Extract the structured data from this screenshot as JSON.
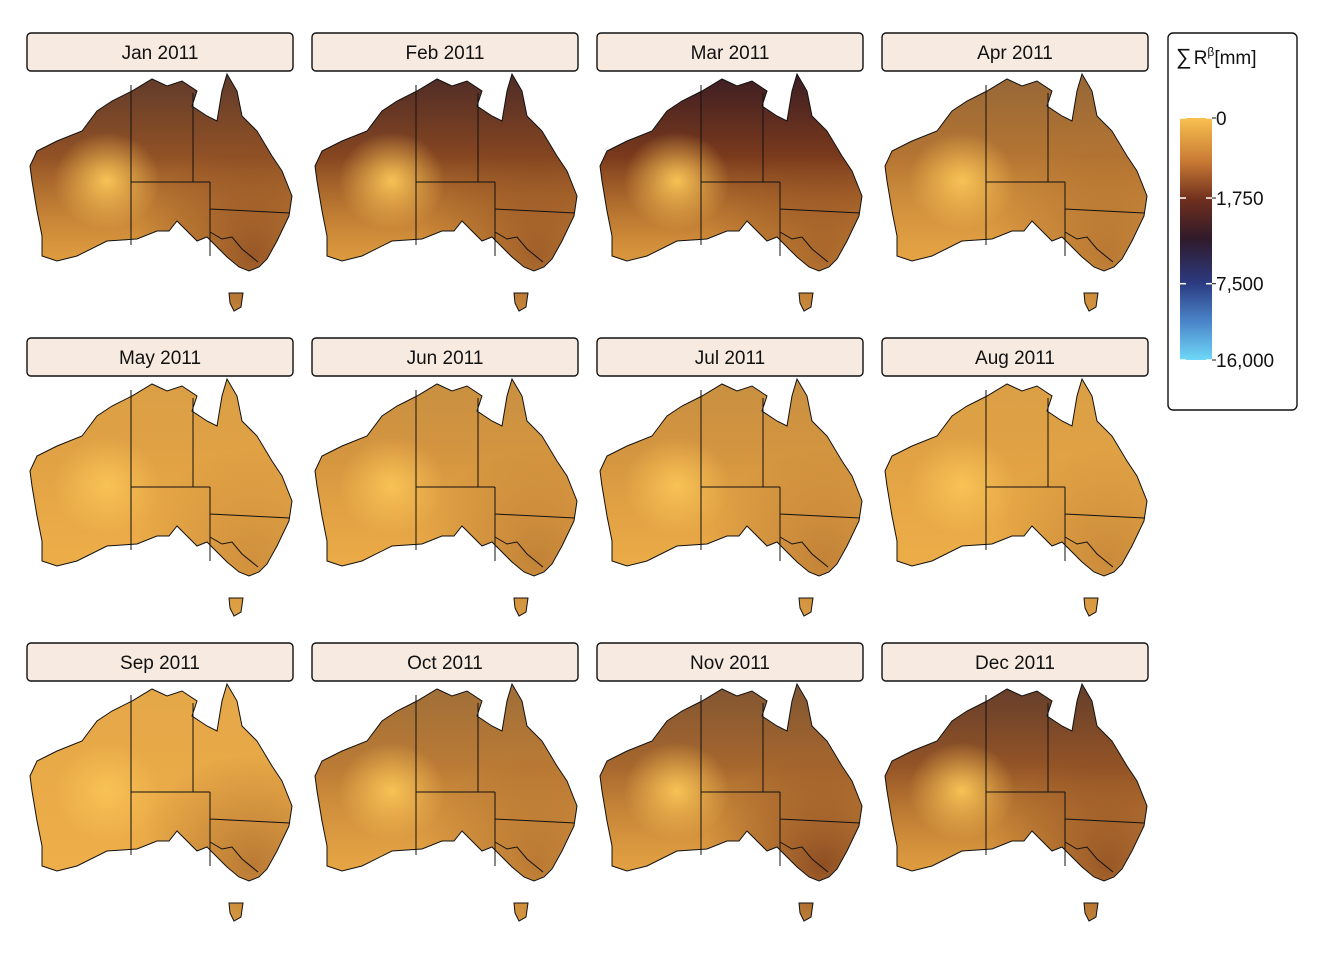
{
  "panels": [
    {
      "title": "Jan 2011"
    },
    {
      "title": "Feb 2011"
    },
    {
      "title": "Mar 2011"
    },
    {
      "title": "Apr 2011"
    },
    {
      "title": "May 2011"
    },
    {
      "title": "Jun 2011"
    },
    {
      "title": "Jul 2011"
    },
    {
      "title": "Aug 2011"
    },
    {
      "title": "Sep 2011"
    },
    {
      "title": "Oct 2011"
    },
    {
      "title": "Nov 2011"
    },
    {
      "title": "Dec 2011"
    }
  ],
  "legend": {
    "title": {
      "symbol": "∑",
      "variable": "R",
      "superscript": "β",
      "unit": "[mm]"
    },
    "limits": [
      0,
      16000
    ],
    "scale": "sqrt",
    "ticks": [
      0,
      {
        "value": 1750,
        "label": "1,750"
      },
      {
        "value": 7500,
        "label": "7,500"
      },
      {
        "value": 16000,
        "label": "16,000"
      }
    ]
  }
}
